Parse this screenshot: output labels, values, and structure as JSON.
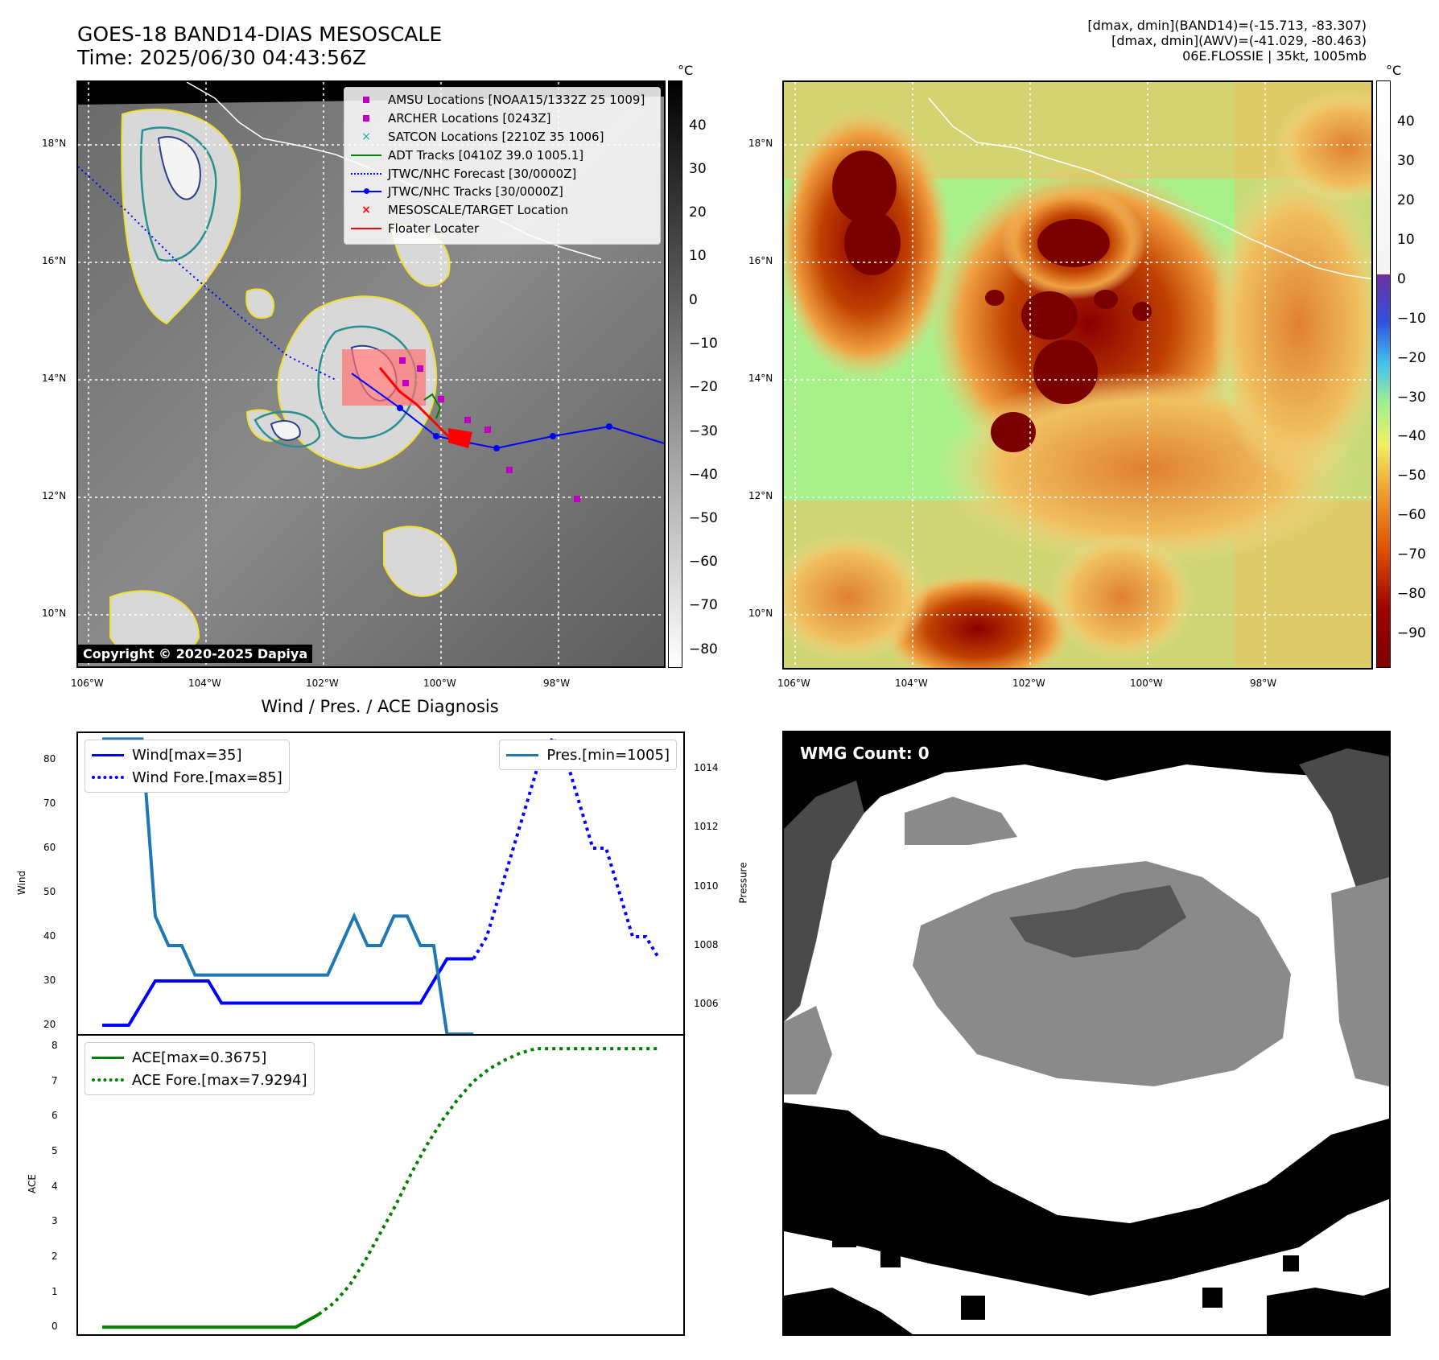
{
  "header": {
    "title_line1": "GOES-18 BAND14-DIAS MESOSCALE",
    "title_line2": "Time: 2025/06/30 04:43:56Z",
    "info_line1": "[dmax, dmin](BAND14)=(-15.713, -83.307)",
    "info_line2": "[dmax, dmin](AWV)=(-41.029, -80.463)",
    "info_line3": "06E.FLOSSIE | 35kt, 1005mb"
  },
  "map_axes": {
    "lon_ticks": [
      "106°W",
      "104°W",
      "102°W",
      "100°W",
      "98°W"
    ],
    "lat_ticks": [
      "18°N",
      "16°N",
      "14°N",
      "12°N",
      "10°N"
    ]
  },
  "colorbar_left": {
    "unit": "°C",
    "ticks": [
      "40",
      "30",
      "20",
      "10",
      "0",
      "−10",
      "−20",
      "−30",
      "−40",
      "−50",
      "−60",
      "−70",
      "−80"
    ]
  },
  "colorbar_right": {
    "unit": "°C",
    "ticks": [
      "40",
      "30",
      "20",
      "10",
      "0",
      "−10",
      "−20",
      "−30",
      "−40",
      "−50",
      "−60",
      "−70",
      "−80",
      "−90"
    ]
  },
  "map_legend": {
    "items": [
      {
        "label": "AMSU Locations [NOAA15/1332Z 25 1009]",
        "color": "#c000c0",
        "marker": "square"
      },
      {
        "label": "ARCHER Locations [0243Z]",
        "color": "#c000c0",
        "marker": "square"
      },
      {
        "label": "SATCON Locations [2210Z 35 1006]",
        "color": "#00b0b0",
        "marker": "x"
      },
      {
        "label": "ADT Tracks [0410Z 39.0 1005.1]",
        "color": "#008000",
        "marker": "line"
      },
      {
        "label": "JTWC/NHC Forecast [30/0000Z]",
        "color": "#0000ff",
        "marker": "dotted"
      },
      {
        "label": "JTWC/NHC Tracks [30/0000Z]",
        "color": "#0000ff",
        "marker": "line-dot"
      },
      {
        "label": "MESOSCALE/TARGET Location",
        "color": "#ff0000",
        "marker": "x"
      },
      {
        "label": "Floater Locater",
        "color": "#ff0000",
        "marker": "line"
      }
    ]
  },
  "copyright": "Copyright © 2020-2025 Dapiya",
  "diagnosis_title": "Wind / Pres. / ACE Diagnosis",
  "wmg_label": "WMG Count: 0",
  "chart_data": [
    {
      "type": "line",
      "title": "Wind / Pres. / ACE Diagnosis",
      "ylabel": "Wind",
      "y2label": "Pressure",
      "ylim": [
        18,
        86
      ],
      "y2lim": [
        1005,
        1015.2
      ],
      "yticks": [
        "80",
        "70",
        "60",
        "50",
        "40",
        "30",
        "20"
      ],
      "y2ticks": [
        "1014",
        "1012",
        "1010",
        "1008",
        "1006"
      ],
      "legend_left": [
        "Wind[max=35]",
        "Wind Fore.[max=85]"
      ],
      "legend_right": [
        "Pres.[min=1005]"
      ],
      "series": [
        {
          "name": "Wind[max=35]",
          "color": "#0000ff",
          "style": "solid",
          "axis": "left",
          "x": [
            0,
            1,
            2,
            3,
            4,
            5,
            6,
            7,
            8,
            9,
            10,
            11,
            12,
            13,
            14,
            15,
            16,
            17,
            18,
            19,
            20,
            21,
            22,
            23,
            24,
            25,
            26,
            27,
            28
          ],
          "values": [
            20,
            20,
            20,
            25,
            30,
            30,
            30,
            30,
            30,
            25,
            25,
            25,
            25,
            25,
            25,
            25,
            25,
            25,
            25,
            25,
            25,
            25,
            25,
            25,
            25,
            30,
            35,
            35,
            35
          ]
        },
        {
          "name": "Wind Fore.[max=85]",
          "color": "#0000ff",
          "style": "dotted",
          "axis": "left",
          "x": [
            28,
            29,
            30,
            31,
            32,
            33,
            34,
            35,
            36,
            37,
            38,
            39,
            40,
            41,
            42
          ],
          "values": [
            35,
            40,
            50,
            60,
            70,
            80,
            85,
            80,
            70,
            60,
            60,
            50,
            40,
            40,
            35
          ]
        },
        {
          "name": "Pres.[min=1005]",
          "color": "#1f77b4",
          "style": "solid",
          "axis": "right",
          "x": [
            0,
            1,
            2,
            3,
            4,
            5,
            6,
            7,
            8,
            9,
            10,
            11,
            12,
            13,
            14,
            15,
            16,
            17,
            18,
            19,
            20,
            21,
            22,
            23,
            24,
            25,
            26,
            27,
            28
          ],
          "values": [
            1015,
            1015,
            1015,
            1015,
            1009,
            1008,
            1008,
            1007,
            1007,
            1007,
            1007,
            1007,
            1007,
            1007,
            1007,
            1007,
            1007,
            1007,
            1008,
            1009,
            1008,
            1008,
            1009,
            1009,
            1008,
            1008,
            1005,
            1005,
            1005
          ]
        }
      ]
    },
    {
      "type": "line",
      "ylabel": "ACE",
      "ylim": [
        -0.2,
        8.3
      ],
      "yticks": [
        "8",
        "7",
        "6",
        "5",
        "4",
        "3",
        "2",
        "1",
        "0"
      ],
      "legend": [
        "ACE[max=0.3675]",
        "ACE Fore.[max=7.9294]"
      ],
      "series": [
        {
          "name": "ACE[max=0.3675]",
          "color": "#008000",
          "style": "solid",
          "x": [
            0,
            25,
            28
          ],
          "values": [
            0,
            0,
            0.3675
          ]
        },
        {
          "name": "ACE Fore.[max=7.9294]",
          "color": "#008000",
          "style": "dotted",
          "x": [
            28,
            30,
            32,
            34,
            36,
            38,
            40,
            42,
            44,
            46,
            48,
            50,
            52,
            54,
            56,
            58,
            60,
            62,
            64,
            66,
            68,
            70,
            72
          ],
          "values": [
            0.3675,
            0.7,
            1.2,
            1.9,
            2.7,
            3.5,
            4.4,
            5.2,
            5.9,
            6.5,
            7.0,
            7.35,
            7.6,
            7.8,
            7.9294,
            7.9294,
            7.9294,
            7.9294,
            7.9294,
            7.9294,
            7.9294,
            7.9294,
            7.9294
          ]
        }
      ]
    }
  ]
}
